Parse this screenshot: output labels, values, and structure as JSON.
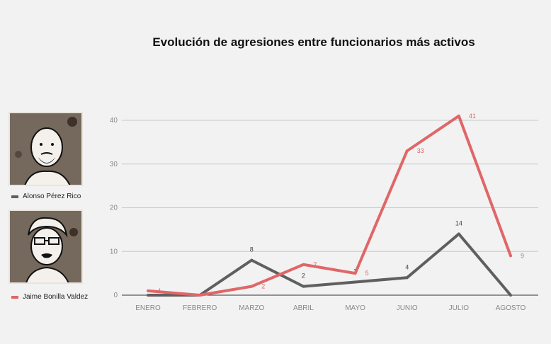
{
  "title": "Evolución de agresiones entre funcionarios más activos",
  "legend": [
    {
      "name": "Alonso Pérez Rico",
      "color": "#5f5f5f",
      "portrait": "cartoon-portrait-bald-man"
    },
    {
      "name": "Jaime Bonilla Valdez",
      "color": "#e06668",
      "portrait": "cartoon-portrait-man-glasses"
    }
  ],
  "chart_data": {
    "type": "line",
    "categories": [
      "ENERO",
      "FEBRERO",
      "MARZO",
      "ABRIL",
      "MAYO",
      "JUNIO",
      "JULIO",
      "AGOSTO"
    ],
    "ylim": [
      0,
      40
    ],
    "yticks": [
      0,
      10,
      20,
      30,
      40
    ],
    "grid": true,
    "legend_position": "left",
    "series": [
      {
        "name": "Alonso Pérez Rico",
        "color": "#5f5f5f",
        "values": [
          0,
          0,
          8,
          2,
          3,
          4,
          14,
          0
        ],
        "labels": [
          "",
          "",
          "8",
          "2",
          "3",
          "4",
          "14",
          ""
        ]
      },
      {
        "name": "Jaime Bonilla Valdez",
        "color": "#e06668",
        "values": [
          1,
          0,
          2,
          7,
          5,
          33,
          41,
          9
        ],
        "labels": [
          "1",
          "",
          "2",
          "7",
          "5",
          "33",
          "41",
          "9"
        ]
      }
    ]
  }
}
